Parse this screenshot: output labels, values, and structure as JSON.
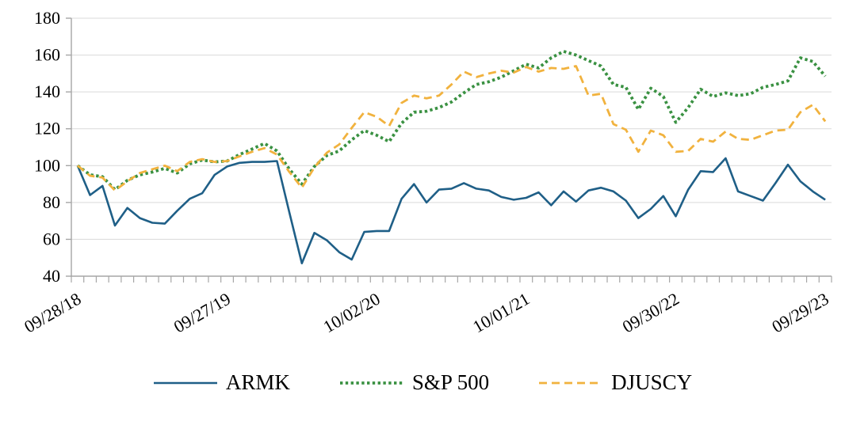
{
  "chart_data": {
    "type": "line",
    "title": "",
    "xlabel": "",
    "ylabel": "",
    "grid": true,
    "legend_position": "bottom",
    "ylim": [
      40,
      180
    ],
    "y_tick_step": 20,
    "y_tick_labels": [
      "40",
      "60",
      "80",
      "100",
      "120",
      "140",
      "160",
      "180"
    ],
    "x_tick_labels": [
      "09/28/18",
      "09/27/19",
      "10/02/20",
      "10/01/21",
      "09/30/22",
      "09/29/23"
    ],
    "x_label_month_positions": [
      0,
      12,
      24,
      36,
      48,
      60
    ],
    "n_points": 61,
    "x_unit": "monthly from 09/28/18 to 09/29/23, indexed value (start = 100)",
    "series": [
      {
        "name": "ARMK",
        "style": "solid",
        "color": "#1F5F87",
        "values": [
          100,
          84,
          89,
          67.5,
          77,
          71.5,
          69,
          68.5,
          75.5,
          82,
          85,
          95,
          99.5,
          101.5,
          102,
          102,
          102.5,
          74.5,
          47,
          63.5,
          59.5,
          53,
          49,
          64,
          64.5,
          64.5,
          82,
          90,
          80,
          87,
          87.5,
          90.5,
          87.5,
          86.5,
          83,
          81.5,
          82.5,
          85.5,
          78.5,
          86,
          80.5,
          86.5,
          88,
          86,
          81,
          71.5,
          76.5,
          83.5,
          72.5,
          87,
          97,
          96.5,
          104,
          86,
          83.5,
          81,
          90.5,
          100.5,
          91.5,
          86,
          81.5
        ]
      },
      {
        "name": "S&P 500",
        "style": "dotted",
        "color": "#3A9142",
        "values": [
          100,
          95,
          94,
          87,
          92,
          95,
          96.5,
          98.5,
          96,
          101,
          103,
          102,
          102.5,
          106,
          109,
          112,
          108,
          98,
          90,
          99.5,
          105.5,
          108,
          114,
          119,
          116.5,
          113,
          123,
          129,
          129.5,
          131.5,
          134.5,
          139.5,
          144,
          145.5,
          148,
          151.5,
          155,
          153,
          158.5,
          162,
          160,
          157,
          154,
          144,
          142.5,
          130.5,
          142,
          137.5,
          123.5,
          131.5,
          141.5,
          137.5,
          139.5,
          138,
          139,
          142.5,
          144,
          146,
          158.5,
          156.5,
          148.5
        ]
      },
      {
        "name": "DJUSCY",
        "style": "dashed",
        "color": "#F1B23E",
        "values": [
          100,
          94.5,
          93.5,
          86.5,
          91.5,
          96,
          98,
          100,
          97,
          102,
          103.5,
          102,
          102.5,
          105,
          107.5,
          109.5,
          106,
          96.5,
          88,
          99,
          107,
          111.5,
          120.5,
          129,
          126.5,
          121.5,
          134,
          138,
          136.5,
          138,
          144,
          151,
          148,
          150,
          151.5,
          150.5,
          153.5,
          151,
          153,
          152.5,
          154,
          138,
          139,
          122.5,
          119.5,
          107.5,
          119,
          116.5,
          107.5,
          108,
          114.5,
          113,
          118.5,
          114.5,
          114,
          116.5,
          119,
          119.5,
          129,
          133,
          124
        ]
      }
    ],
    "colors": {
      "gridline": "#D9D9D9",
      "axis": "#A6A6A6",
      "text": "#000000",
      "background": "#FFFFFF"
    }
  }
}
